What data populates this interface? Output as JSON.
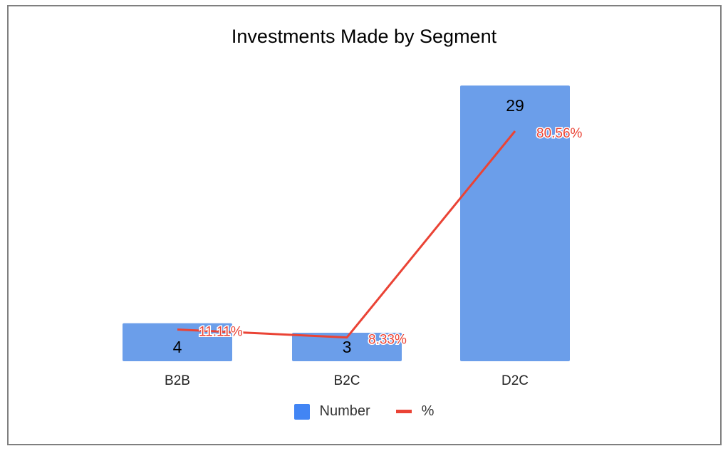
{
  "chart_data": {
    "type": "bar",
    "title": "Investments Made by Segment",
    "categories": [
      "B2B",
      "B2C",
      "D2C"
    ],
    "series": [
      {
        "name": "Number",
        "kind": "bar",
        "values": [
          4,
          3,
          29
        ],
        "labels": [
          "4",
          "3",
          "29"
        ],
        "color": "#6b9eea"
      },
      {
        "name": "%",
        "kind": "line",
        "values": [
          11.11,
          8.33,
          80.56
        ],
        "labels": [
          "11.11%",
          "8.33%",
          "80.56%"
        ],
        "color": "#ea4335"
      }
    ],
    "legend": {
      "position": "bottom",
      "items": [
        {
          "name": "Number",
          "color": "#4285f4"
        },
        {
          "name": "%",
          "color": "#ea4335"
        }
      ]
    },
    "grid": false
  }
}
